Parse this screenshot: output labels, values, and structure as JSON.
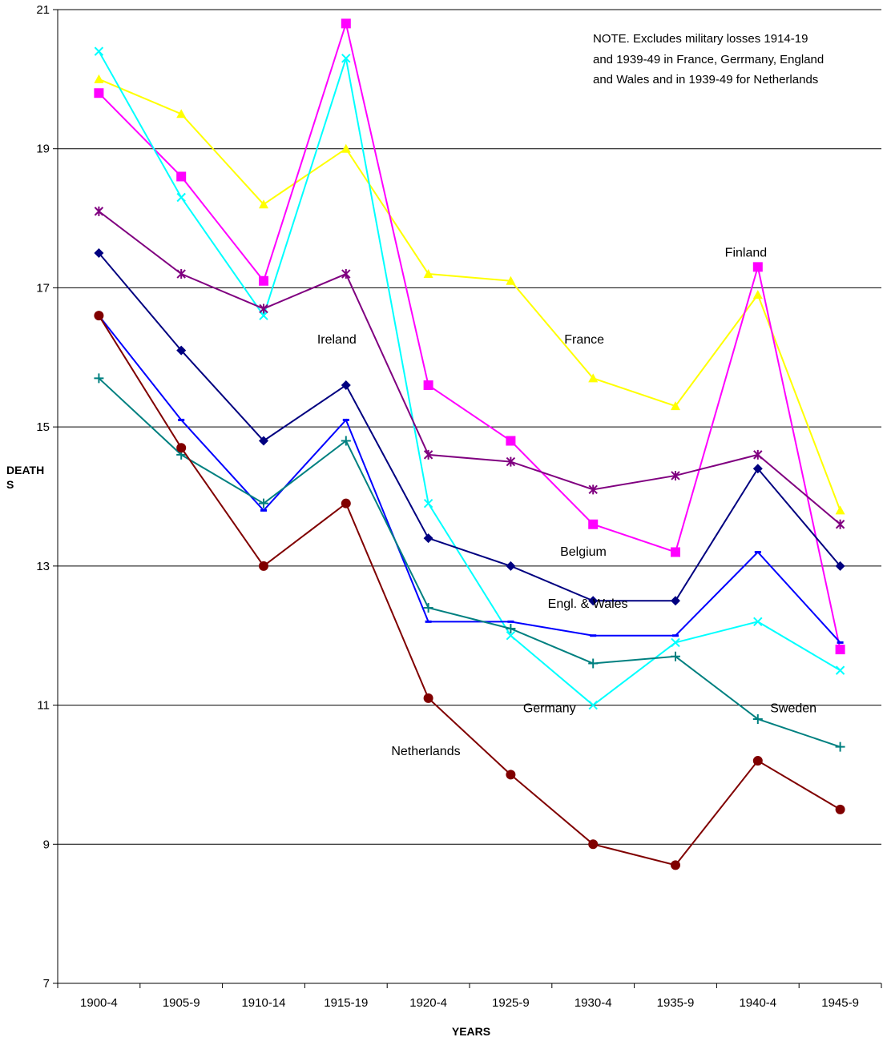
{
  "chart_data": {
    "type": "line",
    "title": "",
    "xlabel": "YEARS",
    "ylabel_lines": [
      "DEATH",
      "S"
    ],
    "ylim": [
      7,
      21
    ],
    "yticks": [
      7,
      9,
      11,
      13,
      15,
      17,
      19,
      21
    ],
    "grid": "horizontal",
    "categories": [
      "1900-4",
      "1905-9",
      "1910-14",
      "1915-19",
      "1920-4",
      "1925-9",
      "1930-4",
      "1935-9",
      "1940-4",
      "1945-9"
    ],
    "note_lines": [
      "NOTE.  Excludes military losses 1914-19",
      "and 1939-49 in France, Gerrmany, England",
      "and Wales and in 1939-49  for Netherlands"
    ],
    "series": [
      {
        "name": "France",
        "color": "#ffff00",
        "marker": "triangle",
        "values": [
          20.0,
          19.5,
          18.2,
          19.0,
          17.2,
          17.1,
          15.7,
          15.3,
          16.9,
          13.8
        ]
      },
      {
        "name": "Finland",
        "color": "#ff00ff",
        "marker": "square",
        "values": [
          19.8,
          18.6,
          17.1,
          20.8,
          15.6,
          14.8,
          13.6,
          13.2,
          17.3,
          11.8
        ]
      },
      {
        "name": "Germany",
        "color": "#00ffff",
        "marker": "x",
        "values": [
          20.4,
          18.3,
          16.6,
          20.3,
          13.9,
          12.0,
          11.0,
          11.9,
          12.2,
          11.5
        ]
      },
      {
        "name": "Ireland",
        "color": "#800080",
        "marker": "star",
        "values": [
          18.1,
          17.2,
          16.7,
          17.2,
          14.6,
          14.5,
          14.1,
          14.3,
          14.6,
          13.6
        ]
      },
      {
        "name": "Belgium",
        "color": "#000080",
        "marker": "diamond",
        "values": [
          17.5,
          16.1,
          14.8,
          15.6,
          13.4,
          13.0,
          12.5,
          12.5,
          14.4,
          13.0
        ]
      },
      {
        "name": "Engl. & Wales",
        "color": "#0000ff",
        "marker": "dash",
        "values": [
          16.6,
          15.1,
          13.8,
          15.1,
          12.2,
          12.2,
          12.0,
          12.0,
          13.2,
          11.9
        ]
      },
      {
        "name": "Sweden",
        "color": "#008080",
        "marker": "plus",
        "values": [
          15.7,
          14.6,
          13.9,
          14.8,
          12.4,
          12.1,
          11.6,
          11.7,
          10.8,
          10.4
        ]
      },
      {
        "name": "Netherlands",
        "color": "#800000",
        "marker": "circle",
        "values": [
          16.6,
          14.7,
          13.0,
          13.9,
          11.1,
          10.0,
          9.0,
          8.7,
          10.2,
          9.5
        ]
      }
    ],
    "series_labels": [
      {
        "text": "Finland",
        "cat": 7.6,
        "y": 17.45
      },
      {
        "text": "France",
        "cat": 5.65,
        "y": 16.2
      },
      {
        "text": "Ireland",
        "cat": 2.65,
        "y": 16.2
      },
      {
        "text": "Belgium",
        "cat": 5.6,
        "y": 13.15
      },
      {
        "text": "Engl. & Wales",
        "cat": 5.45,
        "y": 12.4
      },
      {
        "text": "Germany",
        "cat": 5.15,
        "y": 10.9
      },
      {
        "text": "Sweden",
        "cat": 8.15,
        "y": 10.9
      },
      {
        "text": "Netherlands",
        "cat": 3.55,
        "y": 10.28
      }
    ]
  }
}
